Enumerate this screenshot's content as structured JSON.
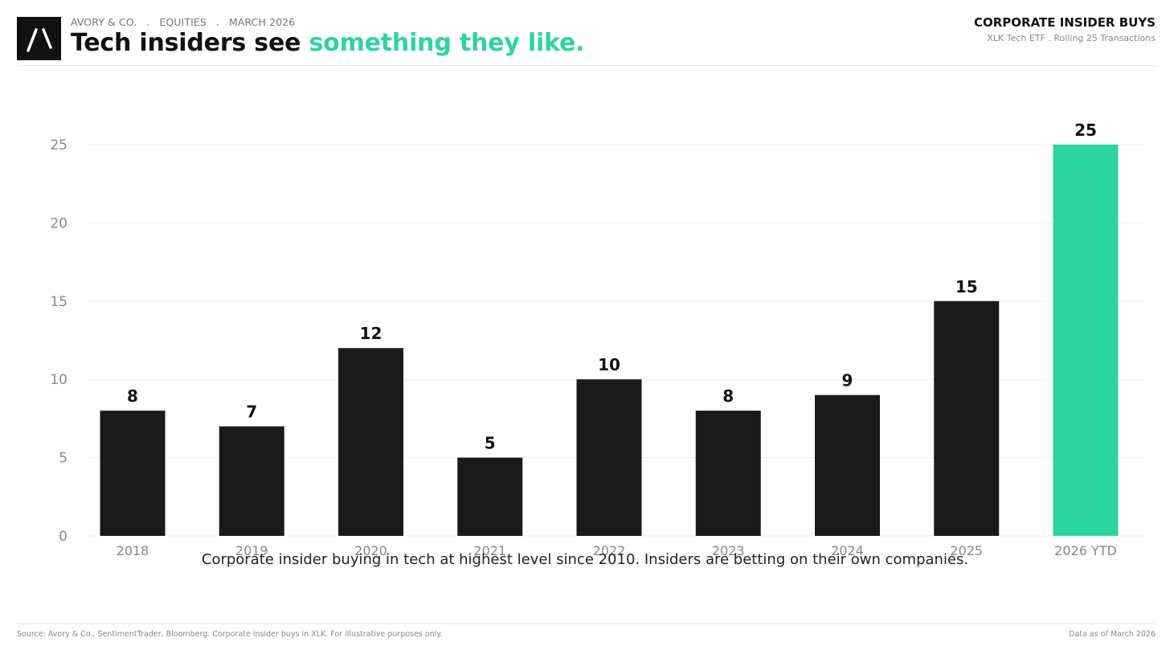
{
  "header": {
    "eyebrow": [
      "AVORY & CO.",
      "EQUITIES",
      "MARCH 2026"
    ],
    "eyebrow_separator": ".",
    "headline_main": "Tech insiders see ",
    "headline_accent": "something they like.",
    "right_title": "CORPORATE INSIDER BUYS",
    "right_subtitle": "XLK Tech ETF . Rolling 25 Transactions"
  },
  "colors": {
    "accent": "#2dd4a0",
    "bar": "#1a1a1a",
    "text": "#111111",
    "muted": "#888888"
  },
  "logo": {
    "icon": "slash-mark-icon"
  },
  "chart_data": {
    "type": "bar",
    "categories": [
      "2018",
      "2019",
      "2020",
      "2021",
      "2022",
      "2023",
      "2024",
      "2025",
      "2026 YTD"
    ],
    "values": [
      8,
      7,
      12,
      5,
      10,
      8,
      9,
      15,
      25
    ],
    "highlight_category": "2026 YTD",
    "ylim": [
      0,
      25
    ],
    "yticks": [
      0,
      5,
      10,
      15,
      20,
      25
    ],
    "grid": true,
    "data_labels": true,
    "xlabel": "",
    "ylabel": ""
  },
  "caption": "Corporate insider buying in tech at highest level since 2010. Insiders are betting on their own companies.",
  "footer": {
    "source": "Source: Avory & Co., SentimentTrader, Bloomberg. Corporate insider buys in XLK. For illustrative purposes only.",
    "as_of": "Data as of March 2026"
  }
}
